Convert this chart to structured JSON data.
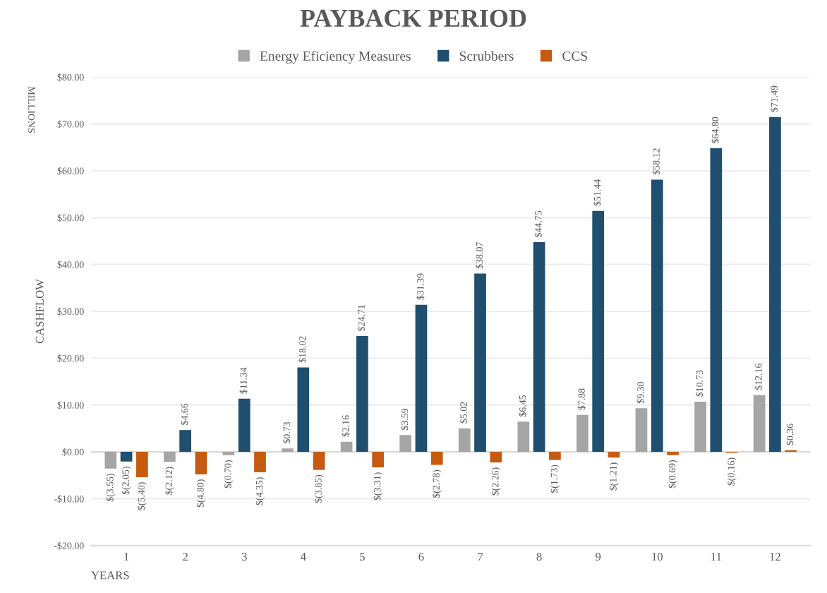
{
  "chart_data": {
    "type": "bar",
    "title": "PAYBACK PERIOD",
    "xlabel": "YEARS",
    "ylabel": "CASHFLOW",
    "annotations": [
      "MILLIONS"
    ],
    "categories": [
      "1",
      "2",
      "3",
      "4",
      "5",
      "6",
      "7",
      "8",
      "9",
      "10",
      "11",
      "12"
    ],
    "series": [
      {
        "name": "Energy Eficiency Measures",
        "color": "#a5a5a5",
        "values": [
          -3.55,
          -2.12,
          -0.7,
          0.73,
          2.16,
          3.59,
          5.02,
          6.45,
          7.88,
          9.3,
          10.73,
          12.16
        ],
        "value_labels": [
          "$(3.55)",
          "$(2.12)",
          "$(0.70)",
          "$0.73",
          "$2.16",
          "$3.59",
          "$5.02",
          "$6.45",
          "$7.88",
          "$9.30",
          "$10.73",
          "$12.16"
        ]
      },
      {
        "name": "Scrubbers",
        "color": "#1f4e6e",
        "values": [
          -2.05,
          4.66,
          11.34,
          18.02,
          24.71,
          31.39,
          38.07,
          44.75,
          51.44,
          58.12,
          64.8,
          71.49
        ],
        "value_labels": [
          "$(2.05)",
          "$4.66",
          "$11.34",
          "$18.02",
          "$24.71",
          "$31.39",
          "$38.07",
          "$44.75",
          "$51.44",
          "$58.12",
          "$64.80",
          "$71.49"
        ]
      },
      {
        "name": "CCS",
        "color": "#c55a11",
        "values": [
          -5.4,
          -4.8,
          -4.35,
          -3.85,
          -3.31,
          -2.78,
          -2.26,
          -1.73,
          -1.21,
          -0.69,
          -0.16,
          0.36
        ],
        "value_labels": [
          "$(5.40)",
          "$(4.80)",
          "$(4.35)",
          "$(3.85)",
          "$(3.31)",
          "$(2.78)",
          "$(2.26)",
          "$(1.73)",
          "$(1.21)",
          "$(0.69)",
          "$(0.16)",
          "$0.36"
        ]
      }
    ],
    "ylim": [
      -20,
      80
    ],
    "yticks": [
      {
        "value": -20,
        "label": "-$20.00"
      },
      {
        "value": -10,
        "label": "-$10.00"
      },
      {
        "value": 0,
        "label": "$0.00"
      },
      {
        "value": 10,
        "label": "$10.00"
      },
      {
        "value": 20,
        "label": "$20.00"
      },
      {
        "value": 30,
        "label": "$30.00"
      },
      {
        "value": 40,
        "label": "$40.00"
      },
      {
        "value": 50,
        "label": "$50.00"
      },
      {
        "value": 60,
        "label": "$60.00"
      },
      {
        "value": 70,
        "label": "$70.00"
      },
      {
        "value": 80,
        "label": "$80.00"
      }
    ],
    "grid": "y",
    "legend": "top"
  }
}
